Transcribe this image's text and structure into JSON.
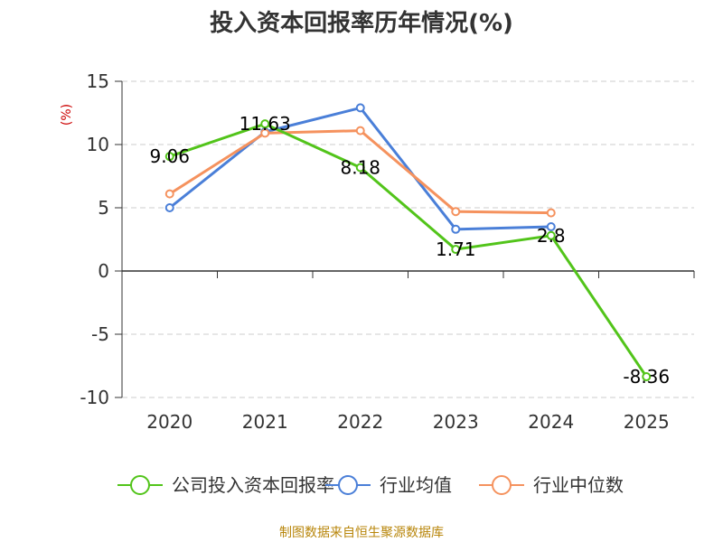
{
  "chart_data": {
    "type": "line",
    "title": "投入资本回报率历年情况(%)",
    "ylabel": "(%)",
    "categories": [
      "2020",
      "2021",
      "2022",
      "2023",
      "2024",
      "2025"
    ],
    "ylim": [
      -10,
      15
    ],
    "yticks": [
      15,
      10,
      5,
      0,
      -5,
      -10
    ],
    "grid": true,
    "legend_position": "bottom",
    "series": [
      {
        "name": "公司投入资本回报率",
        "color": "#52c41a",
        "values": [
          9.06,
          11.63,
          8.18,
          1.71,
          2.8,
          -8.36
        ],
        "labels": [
          "9.06",
          "11.63",
          "8.18",
          "1.71",
          "2.8",
          "-8.36"
        ]
      },
      {
        "name": "行业均值",
        "color": "#4a7fd8",
        "values": [
          5.0,
          11.0,
          12.9,
          3.3,
          3.5,
          null
        ]
      },
      {
        "name": "行业中位数",
        "color": "#f5925e",
        "values": [
          6.1,
          10.9,
          11.1,
          4.7,
          4.6,
          null
        ]
      }
    ],
    "source": "制图数据来自恒生聚源数据库"
  },
  "colors": {
    "axis": "#333333",
    "grid": "#cccccc",
    "ylabel": "#cc0000",
    "source": "#b8860b"
  }
}
